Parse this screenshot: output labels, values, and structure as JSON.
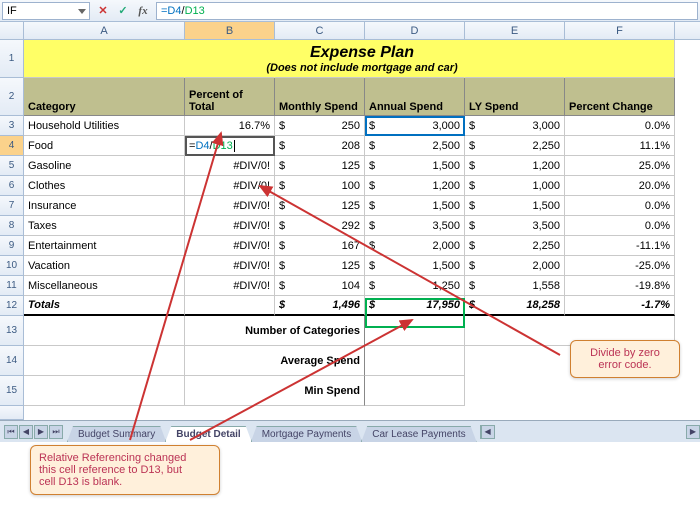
{
  "formula_bar": {
    "name_box": "IF",
    "d4": "=D4",
    "sep": "/",
    "d13": "D13"
  },
  "title": {
    "main": "Expense Plan",
    "sub": "(Does not include mortgage and car)"
  },
  "columns": [
    "A",
    "B",
    "C",
    "D",
    "E",
    "F"
  ],
  "headers": {
    "category": "Category",
    "pct": "Percent of Total",
    "monthly": "Monthly Spend",
    "annual": "Annual Spend",
    "ly": "LY Spend",
    "change": "Percent Change"
  },
  "rows": [
    {
      "n": "3",
      "cat": "Household Utilities",
      "pct": "16.7%",
      "m": "250",
      "a": "3,000",
      "ly": "3,000",
      "ch": "0.0%"
    },
    {
      "n": "4",
      "cat": "Food",
      "pct_edit": true,
      "m": "208",
      "a": "2,500",
      "ly": "2,250",
      "ch": "11.1%"
    },
    {
      "n": "5",
      "cat": "Gasoline",
      "pct": "#DIV/0!",
      "m": "125",
      "a": "1,500",
      "ly": "1,200",
      "ch": "25.0%"
    },
    {
      "n": "6",
      "cat": "Clothes",
      "pct": "#DIV/0!",
      "m": "100",
      "a": "1,200",
      "ly": "1,000",
      "ch": "20.0%"
    },
    {
      "n": "7",
      "cat": "Insurance",
      "pct": "#DIV/0!",
      "m": "125",
      "a": "1,500",
      "ly": "1,500",
      "ch": "0.0%"
    },
    {
      "n": "8",
      "cat": "Taxes",
      "pct": "#DIV/0!",
      "m": "292",
      "a": "3,500",
      "ly": "3,500",
      "ch": "0.0%"
    },
    {
      "n": "9",
      "cat": "Entertainment",
      "pct": "#DIV/0!",
      "m": "167",
      "a": "2,000",
      "ly": "2,250",
      "ch": "-11.1%"
    },
    {
      "n": "10",
      "cat": "Vacation",
      "pct": "#DIV/0!",
      "m": "125",
      "a": "1,500",
      "ly": "2,000",
      "ch": "-25.0%"
    },
    {
      "n": "11",
      "cat": "Miscellaneous",
      "pct": "#DIV/0!",
      "m": "104",
      "a": "1,250",
      "ly": "1,558",
      "ch": "-19.8%"
    },
    {
      "n": "12",
      "cat": "Totals",
      "totals": true,
      "m": "1,496",
      "a": "17,950",
      "ly": "18,258",
      "ch": "-1.7%"
    }
  ],
  "edit": {
    "eq": "=",
    "d4": "D4",
    "sep": "/",
    "d13": "D13",
    "cursor": "|"
  },
  "summary": {
    "r13": "13",
    "r14": "14",
    "r15": "15",
    "numcat": "Number of Categories",
    "avg": "Average Spend",
    "min": "Min Spend"
  },
  "tabs": {
    "summary": "Budget Summary",
    "detail": "Budget Detail",
    "mortgage": "Mortgage Payments",
    "car": "Car Lease Payments"
  },
  "callouts": {
    "divzero": "Divide by zero\nerror code.",
    "relref": "Relative Referencing changed\nthis cell reference to D13, but\ncell D13 is blank."
  },
  "colors": {
    "title_bg": "#ffff66",
    "header_bg": "#bfbf8f",
    "callout_bg": "#fff0db",
    "callout_border": "#d08030",
    "callout_text": "#bb3355",
    "arrow": "#cc3333",
    "blue": "#0070c0",
    "green": "#00b050"
  }
}
